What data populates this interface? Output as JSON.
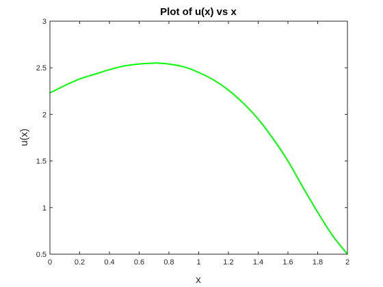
{
  "chart_data": {
    "type": "line",
    "title": "Plot of u(x) vs x",
    "xlabel": "x",
    "ylabel": "u(x)",
    "xlim": [
      0,
      2
    ],
    "ylim": [
      0.5,
      3
    ],
    "x_ticks": [
      "0",
      "0.2",
      "0.4",
      "0.6",
      "0.8",
      "1",
      "1.2",
      "1.4",
      "1.6",
      "1.8",
      "2"
    ],
    "y_ticks": [
      "0.5",
      "1",
      "1.5",
      "2",
      "2.5",
      "3"
    ],
    "grid": false,
    "box": true,
    "series": [
      {
        "color": "#00ff00",
        "x": [
          0,
          0.1,
          0.2,
          0.3,
          0.4,
          0.5,
          0.6,
          0.7,
          0.73,
          0.8,
          0.9,
          1.0,
          1.1,
          1.2,
          1.3,
          1.4,
          1.5,
          1.6,
          1.7,
          1.8,
          1.9,
          2.0
        ],
        "y": [
          2.23,
          2.31,
          2.38,
          2.43,
          2.48,
          2.52,
          2.54,
          2.55,
          2.55,
          2.54,
          2.51,
          2.45,
          2.37,
          2.26,
          2.12,
          1.95,
          1.74,
          1.5,
          1.22,
          0.95,
          0.7,
          0.5
        ]
      }
    ]
  }
}
